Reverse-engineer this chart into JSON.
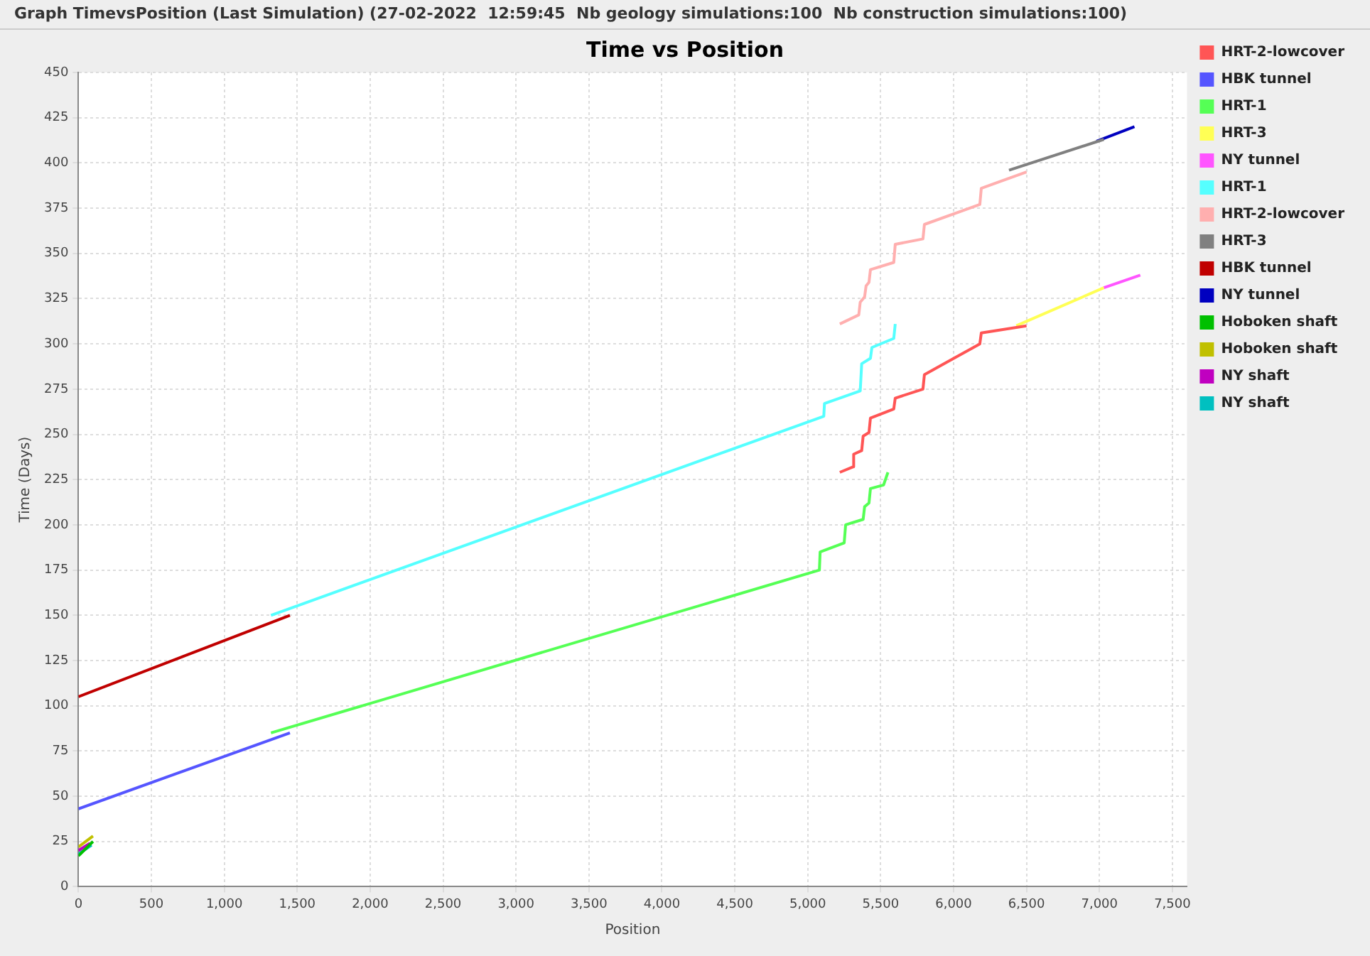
{
  "chart_data": {
    "type": "line",
    "title": "Time vs Position",
    "subtitle": "Graph TimevsPosition (Last Simulation) (27-02-2022  12:59:45  Nb geology simulations:100  Nb construction simulations:100)",
    "xlabel": "Position",
    "ylabel": "Time (Days)",
    "legend": "right",
    "grid": true,
    "marker": "none",
    "line_style": "solid",
    "xlim": [
      0,
      7600
    ],
    "ylim": [
      0,
      450
    ],
    "xticks": [
      0,
      500,
      {
        "value": 1000,
        "label": "1,000"
      },
      {
        "value": 1500,
        "label": "1,500"
      },
      {
        "value": 2000,
        "label": "2,000"
      },
      {
        "value": 2500,
        "label": "2,500"
      },
      {
        "value": 3000,
        "label": "3,000"
      },
      {
        "value": 3500,
        "label": "3,500"
      },
      {
        "value": 4000,
        "label": "4,000"
      },
      {
        "value": 4500,
        "label": "4,500"
      },
      {
        "value": 5000,
        "label": "5,000"
      },
      {
        "value": 5500,
        "label": "5,500"
      },
      {
        "value": 6000,
        "label": "6,000"
      },
      {
        "value": 6500,
        "label": "6,500"
      },
      {
        "value": 7000,
        "label": "7,000"
      },
      {
        "value": 7500,
        "label": "7,500"
      }
    ],
    "yticks": [
      0,
      25,
      50,
      75,
      100,
      125,
      150,
      175,
      200,
      225,
      250,
      275,
      300,
      325,
      350,
      375,
      400,
      425,
      450
    ],
    "series": [
      {
        "name": "HRT-2-lowcover",
        "color": "#ff5555",
        "x": [
          5220,
          5310,
          5315,
          5370,
          5380,
          5420,
          5430,
          5590,
          5600,
          5790,
          5800,
          6180,
          6190,
          6500
        ],
        "values": [
          229,
          232,
          239,
          241,
          249,
          251,
          259,
          264,
          270,
          275,
          283,
          300,
          306,
          310
        ]
      },
      {
        "name": "HBK tunnel",
        "color": "#5555ff",
        "x": [
          0,
          1450
        ],
        "values": [
          43,
          85
        ]
      },
      {
        "name": "HRT-1",
        "color": "#55ff55",
        "x": [
          1320,
          5080,
          5085,
          5250,
          5260,
          5380,
          5390,
          5420,
          5430,
          5520,
          5550
        ],
        "values": [
          85,
          175,
          185,
          190,
          200,
          203,
          210,
          212,
          220,
          222,
          229
        ]
      },
      {
        "name": "HRT-3",
        "color": "#ffff55",
        "x": [
          6430,
          7030
        ],
        "values": [
          310,
          331
        ]
      },
      {
        "name": "NY tunnel",
        "color": "#ff55ff",
        "x": [
          7030,
          7280
        ],
        "values": [
          331,
          338
        ]
      },
      {
        "name": "HRT-1",
        "color": "#55ffff",
        "x": [
          1320,
          5110,
          5115,
          5360,
          5370,
          5430,
          5440,
          5590,
          5600
        ],
        "values": [
          150,
          260,
          267,
          274,
          289,
          292,
          298,
          303,
          311
        ]
      },
      {
        "name": "HRT-2-lowcover",
        "color": "#ffafaf",
        "x": [
          5220,
          5350,
          5360,
          5390,
          5400,
          5420,
          5430,
          5590,
          5600,
          5790,
          5800,
          6180,
          6190,
          6500
        ],
        "values": [
          311,
          316,
          323,
          326,
          332,
          334,
          341,
          345,
          355,
          358,
          366,
          377,
          386,
          395
        ]
      },
      {
        "name": "HRT-3",
        "color": "#808080",
        "x": [
          6380,
          7030
        ],
        "values": [
          396,
          413
        ]
      },
      {
        "name": "HBK tunnel",
        "color": "#c00000",
        "x": [
          0,
          1450
        ],
        "values": [
          105,
          150
        ]
      },
      {
        "name": "NY tunnel",
        "color": "#0000c0",
        "x": [
          6980,
          7240
        ],
        "values": [
          412,
          420
        ]
      },
      {
        "name": "Hoboken shaft",
        "color": "#00c000",
        "x": [
          0,
          100
        ],
        "values": [
          17,
          25
        ]
      },
      {
        "name": "Hoboken shaft",
        "color": "#c0c000",
        "x": [
          0,
          100
        ],
        "values": [
          22,
          28
        ]
      },
      {
        "name": "NY shaft",
        "color": "#c000c0",
        "x": [
          0,
          80
        ],
        "values": [
          20,
          24
        ]
      },
      {
        "name": "NY shaft",
        "color": "#00c0c0",
        "x": [
          0,
          90
        ],
        "values": [
          18,
          23
        ]
      }
    ]
  }
}
